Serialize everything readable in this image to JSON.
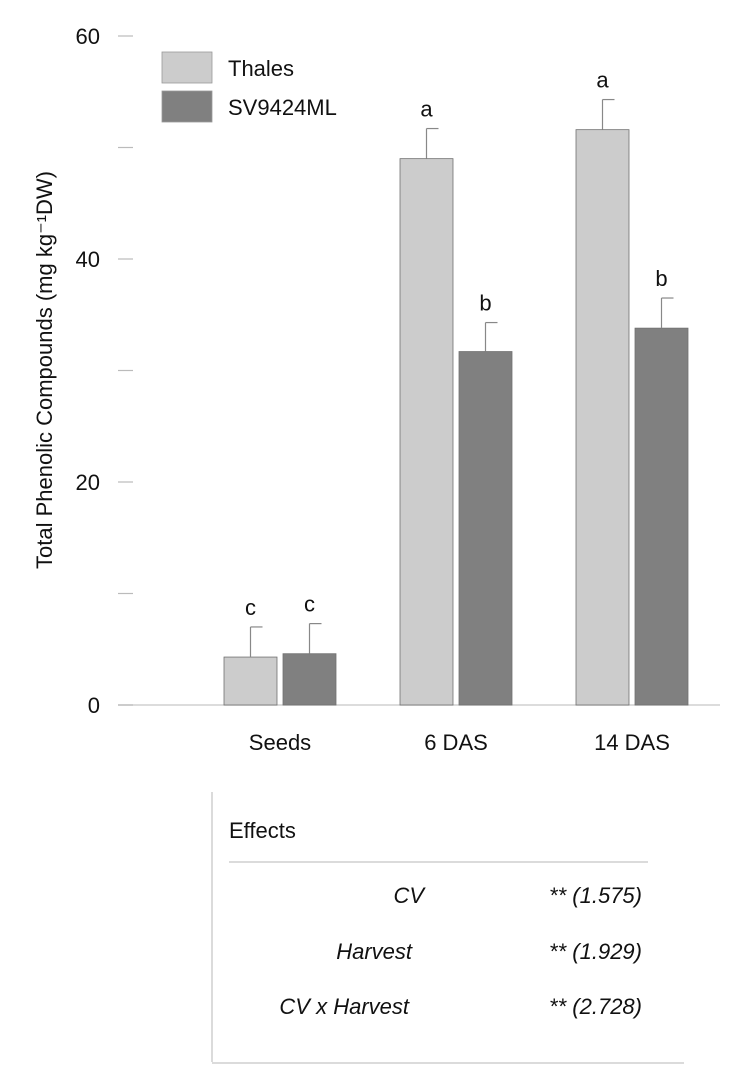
{
  "chart_data": {
    "type": "bar",
    "title": "",
    "xlabel": "",
    "ylabel": "Total Phenolic Compounds  (mg kg⁻¹DW)",
    "ylim": [
      0,
      60
    ],
    "yticks": [
      0,
      10,
      20,
      30,
      40,
      50,
      60
    ],
    "ytick_labels": [
      "0",
      "",
      "20",
      "",
      "40",
      "",
      "60"
    ],
    "categories": [
      "Seeds",
      "6 DAS",
      "14 DAS"
    ],
    "legend_position": "top-left",
    "series": [
      {
        "name": "Thales",
        "color": "#cccccc",
        "values": [
          4.3,
          49.0,
          51.6
        ],
        "errors": [
          2.7,
          2.7,
          2.7
        ],
        "letters": [
          "c",
          "a",
          "a"
        ]
      },
      {
        "name": "SV9424ML",
        "color": "#808080",
        "values": [
          4.6,
          31.7,
          33.8
        ],
        "errors": [
          2.7,
          2.6,
          2.7
        ],
        "letters": [
          "c",
          "b",
          "b"
        ]
      }
    ]
  },
  "effects_table": {
    "header": "Effects",
    "rows": [
      {
        "effect": "CV",
        "value": "** (1.575)"
      },
      {
        "effect": "Harvest",
        "value": "** (1.929)"
      },
      {
        "effect": "CV x Harvest",
        "value": "** (2.728)"
      }
    ]
  }
}
